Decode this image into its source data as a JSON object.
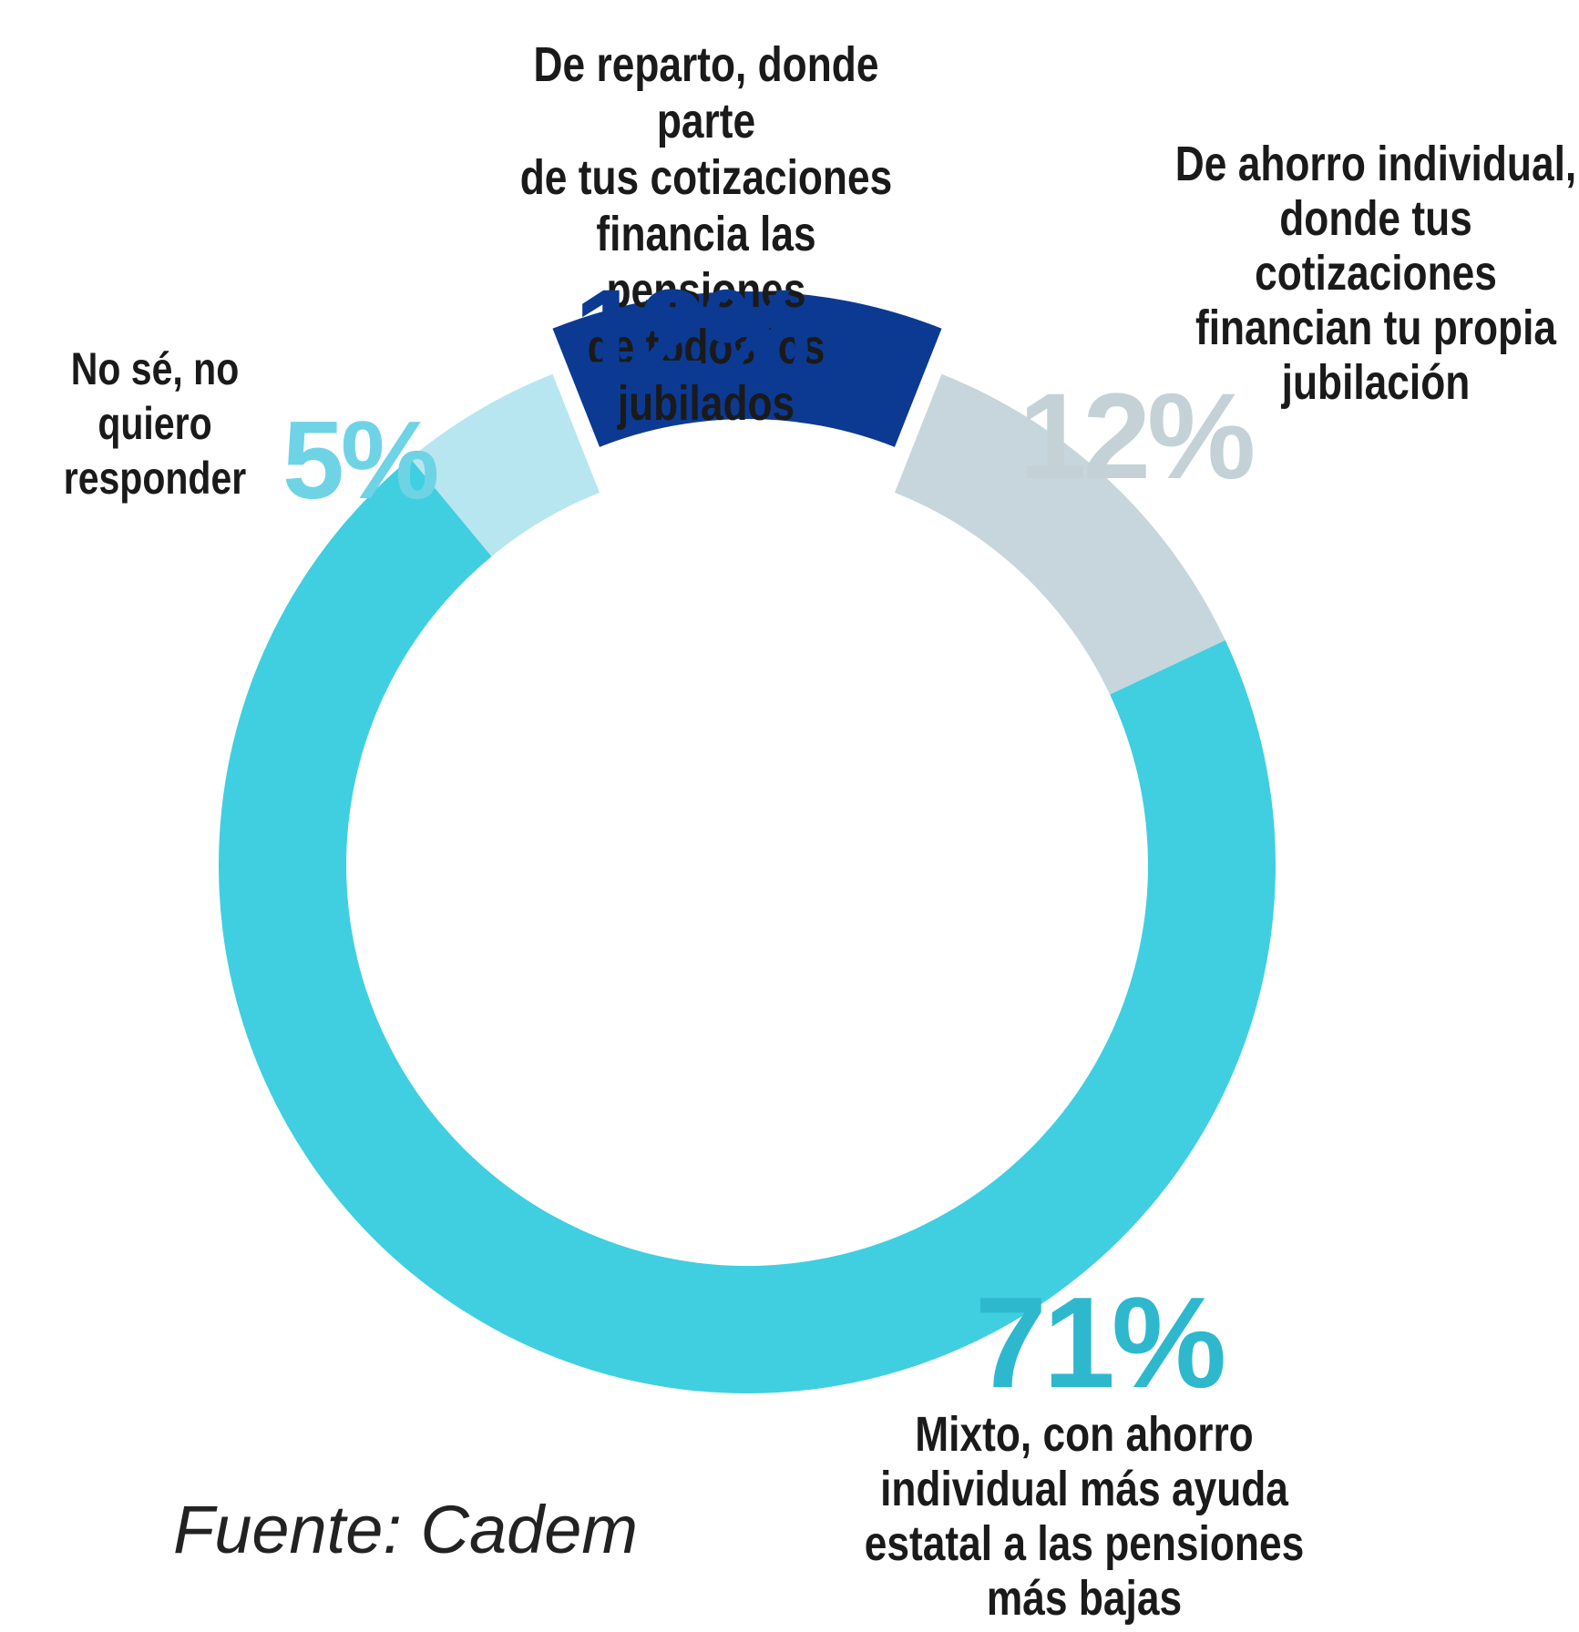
{
  "chart_data": {
    "type": "pie",
    "variant": "donut",
    "slices": [
      {
        "label": "De reparto, donde parte de tus cotizaciones financia las pensiones de todos los jubilados",
        "value": 12,
        "value_label": "12%",
        "color": "#0c3a92",
        "label_color": "#0c3a92"
      },
      {
        "label": "De ahorro individual, donde tus cotizaciones financian tu propia jubilación",
        "value": 12,
        "value_label": "12%",
        "color": "#c7d6dc",
        "label_color": "#c4d2d8"
      },
      {
        "label": "Mixto, con ahorro individual más ayuda estatal a las pensiones más bajas",
        "value": 71,
        "value_label": "71%",
        "color": "#3fcfe0",
        "label_color": "#2eb8ce"
      },
      {
        "label": "No sé, no quiero responder",
        "value": 5,
        "value_label": "5%",
        "color": "#b7e6f0",
        "label_color": "#6fd3e6"
      }
    ]
  },
  "labels": {
    "reparto": "De reparto, donde parte\nde tus cotizaciones\nfinancia las pensiones\nde todos los jubilados",
    "ahorro": "De ahorro individual,\ndonde tus\ncotizaciones\nfinancian tu propia\njubilación",
    "mixto": "Mixto, con ahorro\nindividual más ayuda\nestatal a las pensiones\nmás bajas",
    "nose": "No sé, no\nquiero\nresponder"
  },
  "source": "Fuente: Cadem"
}
